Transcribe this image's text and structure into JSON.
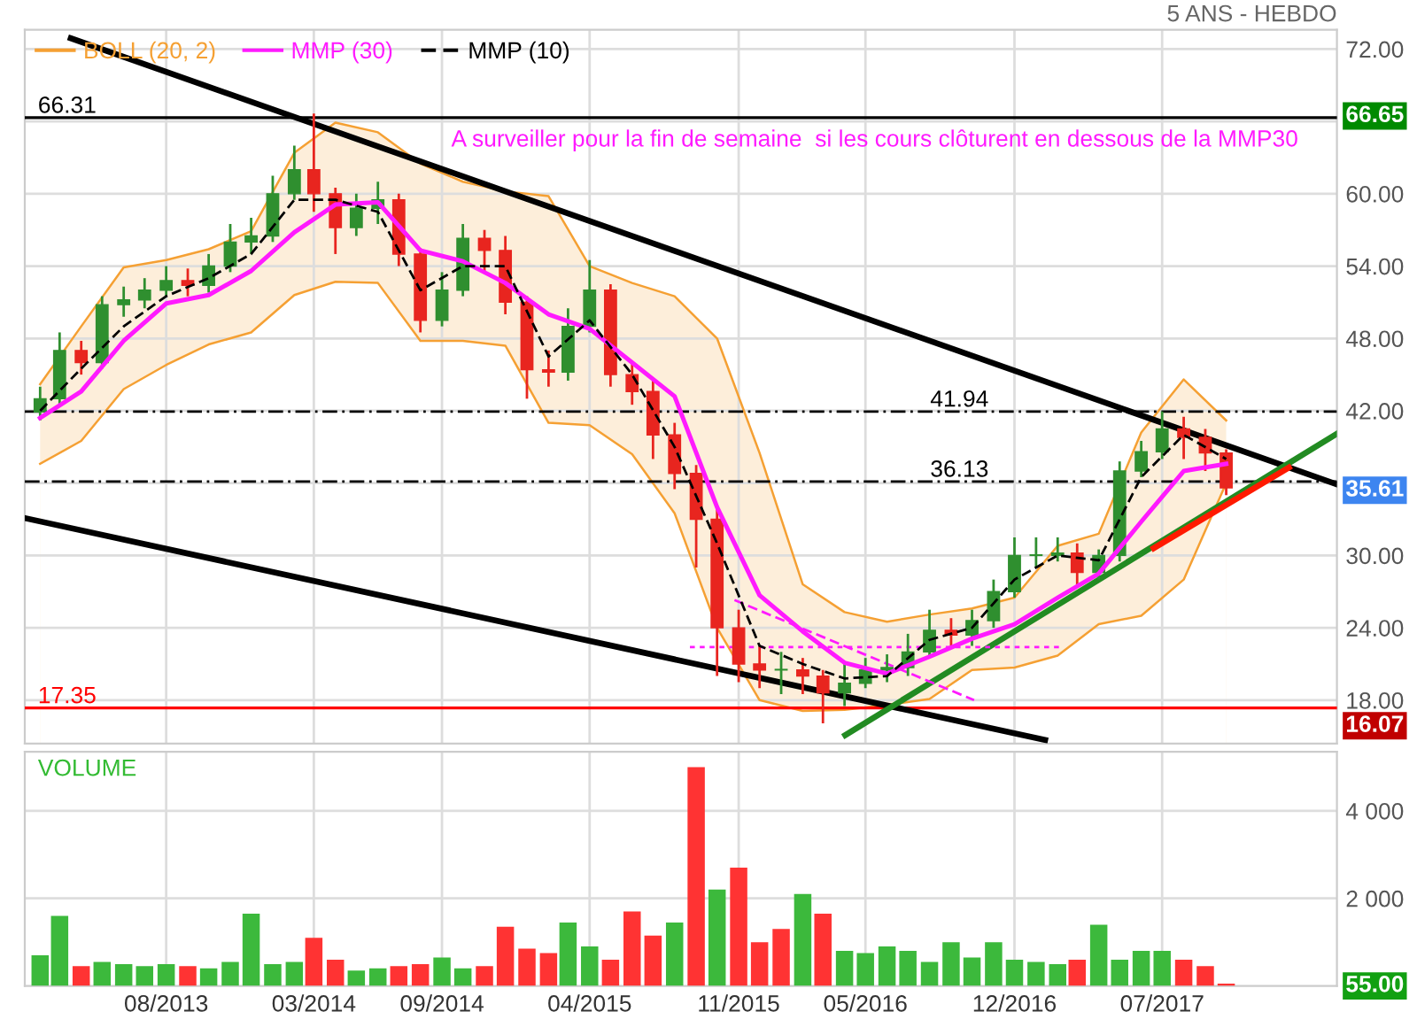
{
  "chart_data": [
    {
      "type": "candlestick",
      "subtitle": "5 ANS - HEBDO",
      "annotations": [
        "A surveiller pour la fin de semaine  si les cours clôturent en dessous de la MMP30"
      ],
      "x": [
        "2013-02-01",
        "2013-03-01",
        "2013-04-01",
        "2013-05-01",
        "2013-06-01",
        "2013-07-01",
        "2013-08-01",
        "2013-09-01",
        "2013-10-01",
        "2013-11-01",
        "2013-12-01",
        "2014-01-01",
        "2014-02-01",
        "2014-03-01",
        "2014-04-01",
        "2014-05-01",
        "2014-06-01",
        "2014-07-01",
        "2014-08-01",
        "2014-09-01",
        "2014-10-01",
        "2014-11-01",
        "2014-12-01",
        "2015-01-01",
        "2015-02-01",
        "2015-03-01",
        "2015-04-01",
        "2015-05-01",
        "2015-06-01",
        "2015-07-01",
        "2015-08-01",
        "2015-09-01",
        "2015-10-01",
        "2015-11-01",
        "2015-12-01",
        "2016-01-01",
        "2016-02-01",
        "2016-03-01",
        "2016-04-01",
        "2016-05-01",
        "2016-06-01",
        "2016-07-01",
        "2016-08-01",
        "2016-09-01",
        "2016-10-01",
        "2016-11-01",
        "2016-12-01",
        "2017-01-01",
        "2017-02-01",
        "2017-03-01",
        "2017-04-01",
        "2017-05-01",
        "2017-06-01",
        "2017-07-01",
        "2017-08-01",
        "2017-09-01",
        "2017-10-01"
      ],
      "ohlc": [
        [
          41.9,
          44,
          41.2,
          43
        ],
        [
          43,
          48.5,
          42.5,
          47
        ],
        [
          47,
          47.8,
          45,
          46
        ],
        [
          46,
          51.5,
          45.5,
          50.8
        ],
        [
          50.8,
          52.3,
          49.8,
          51.2
        ],
        [
          51.2,
          53,
          50.5,
          52
        ],
        [
          52,
          54,
          51.5,
          52.8
        ],
        [
          52.8,
          53.8,
          51.5,
          52.4
        ],
        [
          52.4,
          55,
          51.8,
          54
        ],
        [
          54,
          57.5,
          53.5,
          56
        ],
        [
          56,
          58,
          55,
          56.5
        ],
        [
          56.5,
          61.5,
          56,
          60
        ],
        [
          60,
          64,
          59.5,
          62
        ],
        [
          62,
          66.65,
          58.5,
          60
        ],
        [
          60,
          60.5,
          55,
          57.2
        ],
        [
          57.2,
          60,
          56.5,
          58.8
        ],
        [
          58.8,
          61,
          57.5,
          59.5
        ],
        [
          59.5,
          60,
          54,
          55
        ],
        [
          55,
          55.5,
          48.5,
          49.5
        ],
        [
          49.5,
          53.5,
          49,
          52
        ],
        [
          52,
          57.5,
          51.5,
          56.3
        ],
        [
          56.3,
          57,
          53.5,
          55.3
        ],
        [
          55.3,
          56.5,
          50,
          51
        ],
        [
          51,
          51.5,
          43,
          45.4
        ],
        [
          45.4,
          47,
          44,
          45.2
        ],
        [
          45.2,
          50.5,
          44.5,
          49
        ],
        [
          49,
          54.5,
          48.5,
          52
        ],
        [
          52,
          52.5,
          44,
          45
        ],
        [
          45,
          46,
          42.5,
          43.6
        ],
        [
          43.6,
          44.5,
          38,
          40
        ],
        [
          40,
          41,
          35.5,
          36.8
        ],
        [
          36.8,
          37.5,
          29,
          33
        ],
        [
          33,
          34,
          20,
          24
        ],
        [
          24,
          25.5,
          19.5,
          21
        ],
        [
          21,
          22.5,
          19,
          20.5
        ],
        [
          20.5,
          22,
          18.5,
          20.5
        ],
        [
          20.5,
          21.5,
          18.5,
          20
        ],
        [
          20,
          20.5,
          16.07,
          18.6
        ],
        [
          18.6,
          21,
          17.5,
          19.4
        ],
        [
          19.4,
          21.5,
          19,
          20.5
        ],
        [
          20.5,
          21.8,
          19.5,
          20.7
        ],
        [
          20.7,
          23.5,
          20,
          22
        ],
        [
          22,
          25.5,
          21.5,
          23.8
        ],
        [
          23.8,
          24.8,
          22.5,
          23.4
        ],
        [
          23.4,
          25.5,
          22.5,
          24.6
        ],
        [
          24.6,
          28,
          24,
          27
        ],
        [
          27,
          31.5,
          26.5,
          30
        ],
        [
          30,
          31.5,
          29,
          30
        ],
        [
          30,
          31.5,
          29.5,
          30.2
        ],
        [
          30.2,
          31,
          27.5,
          28.6
        ],
        [
          28.6,
          30.5,
          28,
          30
        ],
        [
          30,
          37.8,
          29.5,
          37
        ],
        [
          37,
          39.5,
          36.5,
          38.6
        ],
        [
          38.6,
          41.94,
          38,
          40.5
        ],
        [
          40.5,
          41.5,
          38,
          39.8
        ],
        [
          39.8,
          40.5,
          37,
          38.5
        ],
        [
          38.5,
          38.8,
          35,
          35.61
        ]
      ],
      "colors": [
        "#2f8f2f",
        "#2f8f2f",
        "#e8251f",
        "#2f8f2f",
        "#2f8f2f",
        "#2f8f2f",
        "#2f8f2f",
        "#e8251f",
        "#2f8f2f",
        "#2f8f2f",
        "#2f8f2f",
        "#2f8f2f",
        "#2f8f2f",
        "#e8251f",
        "#e8251f",
        "#2f8f2f",
        "#2f8f2f",
        "#e8251f",
        "#e8251f",
        "#2f8f2f",
        "#2f8f2f",
        "#e8251f",
        "#e8251f",
        "#e8251f",
        "#e8251f",
        "#2f8f2f",
        "#2f8f2f",
        "#e8251f",
        "#e8251f",
        "#e8251f",
        "#e8251f",
        "#e8251f",
        "#e8251f",
        "#e8251f",
        "#e8251f",
        "#2f8f2f",
        "#e8251f",
        "#e8251f",
        "#2f8f2f",
        "#2f8f2f",
        "#2f8f2f",
        "#2f8f2f",
        "#2f8f2f",
        "#e8251f",
        "#2f8f2f",
        "#2f8f2f",
        "#2f8f2f",
        "#2f8f2f",
        "#2f8f2f",
        "#e8251f",
        "#2f8f2f",
        "#2f8f2f",
        "#2f8f2f",
        "#2f8f2f",
        "#e8251f",
        "#e8251f",
        "#e8251f"
      ],
      "series": [
        {
          "name": "BOLL (20, 2)",
          "type": "area",
          "color": "#f5a033",
          "values": [
            44.2,
            49,
            53.9,
            54.5,
            55.4,
            56.9,
            63.4,
            65.9,
            65.1,
            62.5,
            61,
            60.2,
            59.8,
            54,
            52.6,
            51.5,
            48,
            38.5,
            27.6,
            25.3,
            24.5,
            25.1,
            25.6,
            26.5,
            30.8,
            31.8,
            40.2,
            44.6,
            41.2
          ],
          "x": [
            "2013-02-01",
            "2013-04-01",
            "2013-06-01",
            "2013-08-01",
            "2013-10-01",
            "2013-12-01",
            "2014-02-01",
            "2014-04-01",
            "2014-06-01",
            "2014-08-01",
            "2014-10-01",
            "2014-12-01",
            "2015-02-01",
            "2015-04-01",
            "2015-06-01",
            "2015-08-01",
            "2015-10-01",
            "2015-12-01",
            "2016-02-01",
            "2016-04-01",
            "2016-06-01",
            "2016-08-01",
            "2016-10-01",
            "2016-12-01",
            "2017-02-01",
            "2017-04-01",
            "2017-06-01",
            "2017-08-01",
            "2017-10-01"
          ],
          "line_style": "solid"
        },
        {
          "type": "area",
          "color": "#f5a033",
          "x": [
            "2013-02-01",
            "2013-04-01",
            "2013-06-01",
            "2013-08-01",
            "2013-10-01",
            "2013-12-01",
            "2014-02-01",
            "2014-04-01",
            "2014-06-01",
            "2014-08-01",
            "2014-10-01",
            "2014-12-01",
            "2015-02-01",
            "2015-04-01",
            "2015-06-01",
            "2015-08-01",
            "2015-10-01",
            "2015-12-01",
            "2016-02-01",
            "2016-04-01",
            "2016-06-01",
            "2016-08-01",
            "2016-10-01",
            "2016-12-01",
            "2017-02-01",
            "2017-04-01",
            "2017-06-01",
            "2017-08-01",
            "2017-10-01"
          ],
          "values": [
            37.6,
            39.5,
            43.8,
            45.8,
            47.5,
            48.5,
            51.6,
            52.7,
            52.6,
            47.8,
            47.8,
            47.4,
            41,
            40.8,
            38.4,
            33.5,
            24,
            18,
            17.1,
            17.2,
            17.6,
            18.1,
            20.5,
            20.7,
            21.7,
            24.3,
            25,
            28,
            36
          ]
        },
        {
          "name": "MMP (30)",
          "type": "line",
          "color": "#ff1aff",
          "x": [
            "2013-02-01",
            "2013-04-01",
            "2013-06-01",
            "2013-08-01",
            "2013-10-01",
            "2013-12-01",
            "2014-02-01",
            "2014-04-01",
            "2014-06-01",
            "2014-08-01",
            "2014-10-01",
            "2014-12-01",
            "2015-02-01",
            "2015-04-01",
            "2015-06-01",
            "2015-08-01",
            "2015-10-01",
            "2015-12-01",
            "2016-02-01",
            "2016-04-01",
            "2016-06-01",
            "2016-08-01",
            "2016-10-01",
            "2016-12-01",
            "2017-02-01",
            "2017-04-01",
            "2017-06-01",
            "2017-08-01",
            "2017-10-01"
          ],
          "values": [
            41.4,
            43.6,
            47.8,
            50.9,
            51.6,
            53.6,
            56.8,
            59.1,
            59.3,
            55.3,
            54.4,
            52.6,
            50,
            48.8,
            46,
            43.2,
            34,
            26.7,
            23.7,
            21.1,
            20.2,
            21.6,
            23.1,
            24.3,
            26.5,
            28.5,
            32.8,
            37,
            37.6
          ]
        },
        {
          "name": "MMP (10)",
          "type": "line",
          "color": "#000000",
          "line_style": "dashed",
          "x": [
            "2013-02-01",
            "2013-04-01",
            "2013-06-01",
            "2013-08-01",
            "2013-10-01",
            "2013-12-01",
            "2014-02-01",
            "2014-04-01",
            "2014-06-01",
            "2014-08-01",
            "2014-10-01",
            "2014-12-01",
            "2015-02-01",
            "2015-04-01",
            "2015-06-01",
            "2015-08-01",
            "2015-10-01",
            "2015-12-01",
            "2016-02-01",
            "2016-04-01",
            "2016-06-01",
            "2016-08-01",
            "2016-10-01",
            "2016-12-01",
            "2017-02-01",
            "2017-04-01",
            "2017-06-01",
            "2017-08-01",
            "2017-10-01"
          ],
          "values": [
            42,
            45.5,
            49,
            51.5,
            53,
            55,
            59.5,
            59.5,
            58.5,
            52,
            54,
            54,
            46.5,
            49.5,
            45,
            39,
            31,
            22.5,
            21,
            19.8,
            20,
            23,
            24,
            28,
            30,
            29.6,
            36.5,
            40,
            38
          ]
        },
        {
          "type": "line",
          "color": "#000000",
          "x": [
            "2013-03-17",
            "2018-03-09"
          ],
          "values": [
            72.9,
            35.9
          ]
        },
        {
          "type": "line",
          "color": "#000000",
          "x": [
            "2013-01-10",
            "2017-01-14"
          ],
          "values": [
            33.1,
            14.7
          ]
        },
        {
          "type": "line",
          "color": "#228b22",
          "x": [
            "2016-04-02",
            "2018-03-09"
          ],
          "values": [
            15.1,
            40.1
          ]
        },
        {
          "type": "line",
          "color": "#ff1a00",
          "x": [
            "2017-06-19",
            "2017-12-30"
          ],
          "values": [
            30.6,
            37.3
          ]
        },
        {
          "type": "line",
          "color": "#ff1aff",
          "line_style": "dotted",
          "x": [
            "2015-08-23",
            "2017-02-09"
          ],
          "values": [
            22.4,
            22.4
          ]
        },
        {
          "type": "line",
          "color": "#ff1aff",
          "line_style": "dashed",
          "x": [
            "2015-10-26",
            "2016-10-04"
          ],
          "values": [
            26.3,
            18.0
          ]
        }
      ],
      "ref_lines": [
        {
          "axis": "y",
          "value": 66.31,
          "label": "66.31",
          "color": "#000000",
          "line_style": "solid"
        },
        {
          "axis": "y",
          "value": 17.35,
          "label": "17.35",
          "color": "#ff0000",
          "line_style": "solid"
        },
        {
          "axis": "y",
          "value": 41.94,
          "label": "41.94",
          "color": "#000000",
          "line_style": "dashdot"
        },
        {
          "axis": "y",
          "value": 36.13,
          "label": "36.13",
          "color": "#000000",
          "line_style": "dashdot"
        }
      ],
      "xlim": [
        "2013-01-10",
        "2018-03-09"
      ],
      "ylim": [
        14.4,
        73.6
      ],
      "yticks": [
        {
          "value": 16.07,
          "label": "16.07"
        },
        {
          "value": 35.61,
          "label": "35.61"
        },
        {
          "value": 66.65,
          "label": "66.65"
        },
        {
          "value": 18,
          "label": "18.00"
        },
        {
          "value": 24,
          "label": "24.00"
        },
        {
          "value": 30,
          "label": "30.00"
        },
        {
          "value": 36,
          "label": null
        },
        {
          "value": 42,
          "label": "42.00"
        },
        {
          "value": 48,
          "label": "48.00"
        },
        {
          "value": 54,
          "label": "54.00"
        },
        {
          "value": 60,
          "label": "60.00"
        },
        {
          "value": 66,
          "label": null
        },
        {
          "value": 72,
          "label": "72.00"
        }
      ],
      "xticks": [
        {
          "value": "2013-08-01",
          "label": null
        },
        {
          "value": "2014-03-01",
          "label": null
        },
        {
          "value": "2014-09-01",
          "label": null
        },
        {
          "value": "2015-04-01",
          "label": null
        },
        {
          "value": "2015-11-01",
          "label": null
        },
        {
          "value": "2016-05-01",
          "label": null
        },
        {
          "value": "2016-12-01",
          "label": null
        },
        {
          "value": "2017-07-01",
          "label": null
        }
      ],
      "tick_labels": "y",
      "grid": true,
      "legend": "top left"
    },
    {
      "type": "bar",
      "title": "VOLUME",
      "x": [
        "2013-02-01",
        "2013-03-01",
        "2013-04-01",
        "2013-05-01",
        "2013-06-01",
        "2013-07-01",
        "2013-08-01",
        "2013-09-01",
        "2013-10-01",
        "2013-11-01",
        "2013-12-01",
        "2014-01-01",
        "2014-02-01",
        "2014-03-01",
        "2014-04-01",
        "2014-05-01",
        "2014-06-01",
        "2014-07-01",
        "2014-08-01",
        "2014-09-01",
        "2014-10-01",
        "2014-11-01",
        "2014-12-01",
        "2015-01-01",
        "2015-02-01",
        "2015-03-01",
        "2015-04-01",
        "2015-05-01",
        "2015-06-01",
        "2015-07-01",
        "2015-08-01",
        "2015-09-01",
        "2015-10-01",
        "2015-11-01",
        "2015-12-01",
        "2016-01-01",
        "2016-02-01",
        "2016-03-01",
        "2016-04-01",
        "2016-05-01",
        "2016-06-01",
        "2016-07-01",
        "2016-08-01",
        "2016-09-01",
        "2016-10-01",
        "2016-11-01",
        "2016-12-01",
        "2017-01-01",
        "2017-02-01",
        "2017-03-01",
        "2017-04-01",
        "2017-05-01",
        "2017-06-01",
        "2017-07-01",
        "2017-08-01",
        "2017-09-01",
        "2017-10-01"
      ],
      "values": [
        700,
        1600,
        450,
        550,
        500,
        450,
        500,
        450,
        400,
        550,
        1650,
        500,
        550,
        1100,
        600,
        350,
        400,
        450,
        500,
        650,
        400,
        450,
        1350,
        850,
        750,
        1450,
        900,
        600,
        1700,
        1150,
        1450,
        5000,
        2200,
        2700,
        1000,
        1300,
        2100,
        1650,
        800,
        750,
        900,
        800,
        550,
        1000,
        650,
        1000,
        600,
        550,
        500,
        600,
        1400,
        600,
        800,
        800,
        600,
        450,
        55
      ],
      "colors": [
        "#3cb93c",
        "#3cb93c",
        "#ff3333",
        "#3cb93c",
        "#3cb93c",
        "#3cb93c",
        "#3cb93c",
        "#ff3333",
        "#3cb93c",
        "#3cb93c",
        "#3cb93c",
        "#3cb93c",
        "#3cb93c",
        "#ff3333",
        "#ff3333",
        "#3cb93c",
        "#3cb93c",
        "#ff3333",
        "#ff3333",
        "#3cb93c",
        "#3cb93c",
        "#ff3333",
        "#ff3333",
        "#ff3333",
        "#ff3333",
        "#3cb93c",
        "#3cb93c",
        "#ff3333",
        "#ff3333",
        "#ff3333",
        "#3cb93c",
        "#ff3333",
        "#3cb93c",
        "#ff3333",
        "#ff3333",
        "#ff3333",
        "#3cb93c",
        "#ff3333",
        "#3cb93c",
        "#3cb93c",
        "#3cb93c",
        "#3cb93c",
        "#3cb93c",
        "#3cb93c",
        "#3cb93c",
        "#3cb93c",
        "#3cb93c",
        "#3cb93c",
        "#3cb93c",
        "#ff3333",
        "#3cb93c",
        "#3cb93c",
        "#3cb93c",
        "#3cb93c",
        "#ff3333",
        "#ff3333",
        "#ff3333"
      ],
      "xlim": [
        "2013-01-10",
        "2018-03-09"
      ],
      "ylim": [
        0,
        5350
      ],
      "yticks": [
        {
          "value": 55,
          "label": "55.00"
        },
        {
          "value": 2000,
          "label": "2 000"
        },
        {
          "value": 4000,
          "label": "4 000"
        }
      ],
      "xticks": [
        {
          "value": "2013-08-01",
          "label": "08/2013"
        },
        {
          "value": "2014-03-01",
          "label": "03/2014"
        },
        {
          "value": "2014-09-01",
          "label": "09/2014"
        },
        {
          "value": "2015-04-01",
          "label": "04/2015"
        },
        {
          "value": "2015-11-01",
          "label": "11/2015"
        },
        {
          "value": "2016-05-01",
          "label": "05/2016"
        },
        {
          "value": "2016-12-01",
          "label": "12/2016"
        },
        {
          "value": "2017-07-01",
          "label": "07/2017"
        }
      ],
      "grid": true
    }
  ]
}
